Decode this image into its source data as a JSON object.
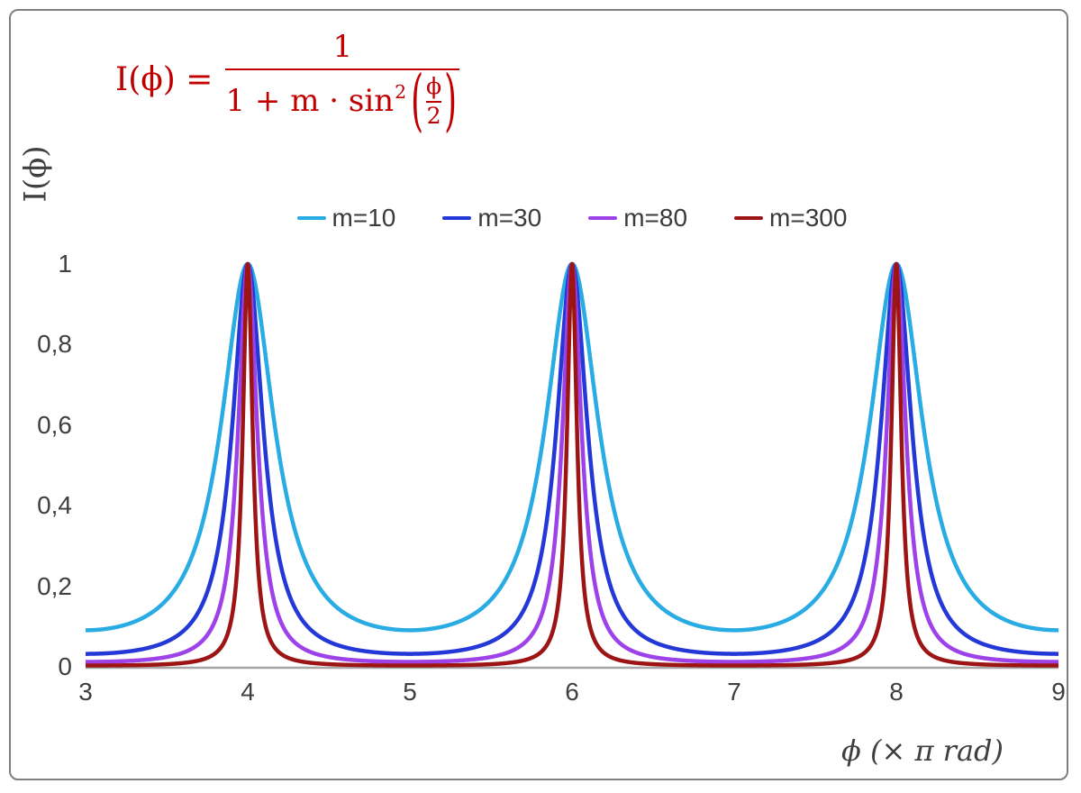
{
  "formula": {
    "lhs": "I(ϕ) =",
    "numerator": "1",
    "den_pre": "1 + m · sin",
    "den_sup": "2",
    "paren_open": "(",
    "paren_close": ")",
    "inner_num": "ϕ",
    "inner_den": "2",
    "color": "#c00000"
  },
  "chart_data": {
    "type": "line",
    "title": "",
    "function": "I(phi) = 1 / (1 + m * sin^2(phi/2))",
    "xlabel": "ϕ  (× π rad)",
    "ylabel": "I(ϕ)",
    "x_unit": "multiples of π rad",
    "xlim": [
      3,
      9
    ],
    "ylim": [
      0,
      1
    ],
    "grid": false,
    "legend_position": "top-center",
    "peaks_at_x": [
      4,
      6,
      8
    ],
    "peak_value": 1,
    "series": [
      {
        "name": "m=10",
        "m": 10,
        "color": "#29ace3",
        "min_value": 0.0909
      },
      {
        "name": "m=30",
        "m": 30,
        "color": "#2338d6",
        "min_value": 0.0323
      },
      {
        "name": "m=80",
        "m": 80,
        "color": "#9c42e8",
        "min_value": 0.0123
      },
      {
        "name": "m=300",
        "m": 300,
        "color": "#9c1414",
        "min_value": 0.0033
      }
    ],
    "x_ticks": [
      {
        "value": 3,
        "label": "3"
      },
      {
        "value": 4,
        "label": "4"
      },
      {
        "value": 5,
        "label": "5"
      },
      {
        "value": 6,
        "label": "6"
      },
      {
        "value": 7,
        "label": "7"
      },
      {
        "value": 8,
        "label": "8"
      },
      {
        "value": 9,
        "label": "9"
      }
    ],
    "y_ticks": [
      {
        "value": 0,
        "label": "0"
      },
      {
        "value": 0.2,
        "label": "0,2"
      },
      {
        "value": 0.4,
        "label": "0,4"
      },
      {
        "value": 0.6,
        "label": "0,6"
      },
      {
        "value": 0.8,
        "label": "0,8"
      },
      {
        "value": 1,
        "label": "1"
      }
    ],
    "axis_color": "#a6a6a6",
    "text_color": "#3f3f3f"
  }
}
